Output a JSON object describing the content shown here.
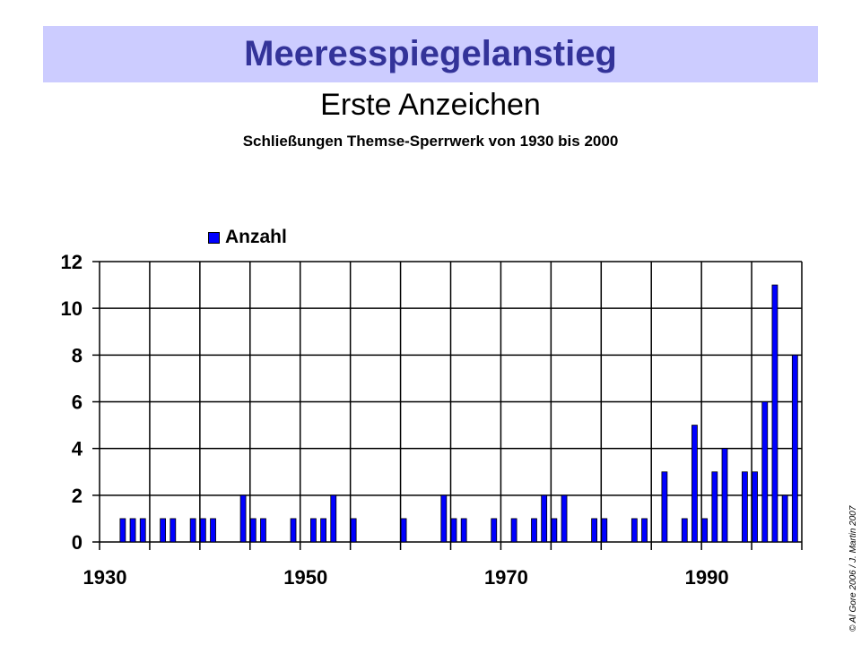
{
  "header": {
    "title": "Meeresspiegelanstieg",
    "subtitle": "Erste Anzeichen",
    "caption": "Schließungen Themse-Sperrwerk von 1930 bis 2000"
  },
  "legend": {
    "label": "Anzahl",
    "color": "#0000ff"
  },
  "credit": "© Al Gore 2006 / J. Martin 2007",
  "colors": {
    "band": "#ccccff",
    "title": "#333399",
    "bar": "#0000ff"
  },
  "chart_data": {
    "type": "bar",
    "title": "Schließungen Themse-Sperrwerk von 1930 bis 2000",
    "xlabel": "",
    "ylabel": "",
    "legend": [
      "Anzahl"
    ],
    "legend_position": "top-left",
    "grid": true,
    "xlim": [
      1930,
      2000
    ],
    "ylim": [
      0,
      12
    ],
    "x_ticks": [
      "1930",
      "1950",
      "1970",
      "1990"
    ],
    "y_ticks": [
      "0",
      "2",
      "4",
      "6",
      "8",
      "10",
      "12"
    ],
    "series": [
      {
        "name": "Anzahl",
        "x": [
          1932,
          1933,
          1934,
          1936,
          1937,
          1939,
          1940,
          1941,
          1944,
          1945,
          1946,
          1949,
          1951,
          1952,
          1953,
          1955,
          1960,
          1964,
          1965,
          1966,
          1969,
          1971,
          1973,
          1974,
          1975,
          1976,
          1979,
          1980,
          1983,
          1984,
          1986,
          1988,
          1989,
          1990,
          1991,
          1992,
          1994,
          1995,
          1996,
          1997,
          1998,
          1999
        ],
        "values": [
          1,
          1,
          1,
          1,
          1,
          1,
          1,
          1,
          2,
          1,
          1,
          1,
          1,
          1,
          2,
          1,
          1,
          2,
          1,
          1,
          1,
          1,
          1,
          2,
          1,
          2,
          1,
          1,
          1,
          1,
          3,
          1,
          5,
          1,
          3,
          4,
          3,
          3,
          6,
          11,
          2,
          8
        ]
      }
    ]
  }
}
